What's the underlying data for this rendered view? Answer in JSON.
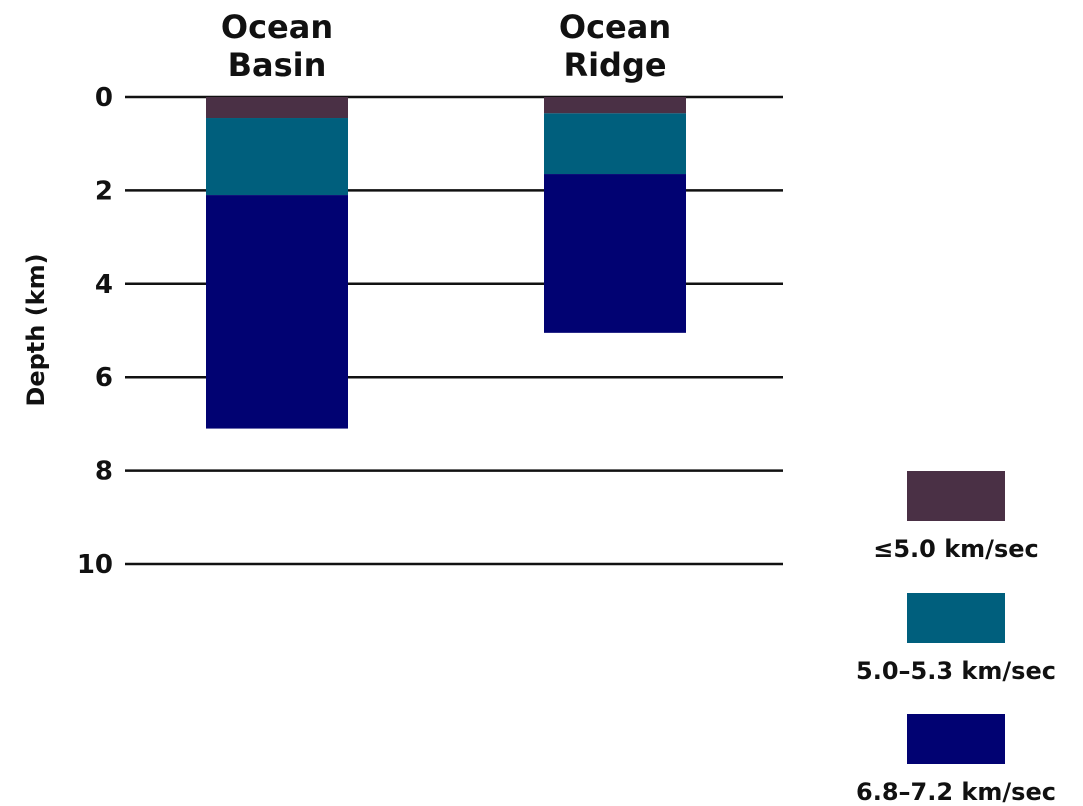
{
  "chart_data": {
    "type": "bar",
    "stacked": true,
    "y_axis_inverted": true,
    "categories": [
      "Ocean\nBasin",
      "Ocean\nRidge"
    ],
    "ylabel": "Depth (km)",
    "ylim": [
      0,
      10
    ],
    "yticks": [
      0,
      2,
      4,
      6,
      8,
      10
    ],
    "grid": true,
    "legend_position": "bottom-right",
    "series": [
      {
        "name": "≤5.0 km/sec",
        "color": "#4a3045",
        "values": [
          0.45,
          0.35
        ]
      },
      {
        "name": "5.0–5.3 km/sec",
        "color": "#005f7d",
        "values": [
          1.65,
          1.3
        ]
      },
      {
        "name": "6.8–7.2 km/sec",
        "color": "#010272",
        "values": [
          5.0,
          3.4
        ]
      }
    ]
  }
}
